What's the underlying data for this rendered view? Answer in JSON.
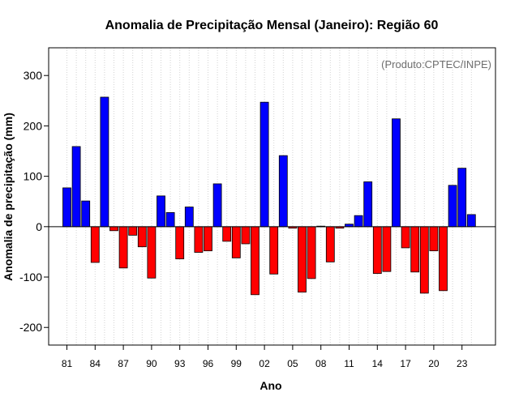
{
  "chart_data": {
    "type": "bar",
    "title": "Anomalia de Precipitação Mensal (Janeiro): Região 60",
    "xlabel": "Ano",
    "ylabel": "Anomalia de precipitação (mm)",
    "credit": "(Produto:CPTEC/INPE)",
    "ylim": [
      -235,
      355
    ],
    "yticks": [
      -200,
      -100,
      0,
      100,
      200,
      300
    ],
    "x_tick_labels": [
      "81",
      "84",
      "87",
      "90",
      "93",
      "96",
      "99",
      "02",
      "05",
      "08",
      "11",
      "14",
      "17",
      "20",
      "23"
    ],
    "grid": "vertical dotted",
    "categories": [
      "1981",
      "1982",
      "1983",
      "1984",
      "1985",
      "1986",
      "1987",
      "1988",
      "1989",
      "1990",
      "1991",
      "1992",
      "1993",
      "1994",
      "1995",
      "1996",
      "1997",
      "1998",
      "1999",
      "2000",
      "2001",
      "2002",
      "2003",
      "2004",
      "2005",
      "2006",
      "2007",
      "2008",
      "2009",
      "2010",
      "2011",
      "2012",
      "2013",
      "2014",
      "2015",
      "2016",
      "2017",
      "2018",
      "2019",
      "2020",
      "2021",
      "2022",
      "2023",
      "2024"
    ],
    "values": [
      77,
      159,
      51,
      -71,
      257,
      -8,
      -82,
      -17,
      -40,
      -102,
      61,
      28,
      -64,
      39,
      -51,
      -48,
      85,
      -29,
      -62,
      -34,
      -135,
      247,
      -94,
      141,
      -3,
      -130,
      -103,
      1,
      -70,
      -3,
      5,
      22,
      89,
      -93,
      -89,
      214,
      -42,
      -90,
      -132,
      -48,
      -127,
      82,
      116,
      24
    ],
    "colors": {
      "positive": "#0000ff",
      "negative": "#ff0000",
      "zero_line": "#000000",
      "grid": "#d3d3d3"
    }
  }
}
